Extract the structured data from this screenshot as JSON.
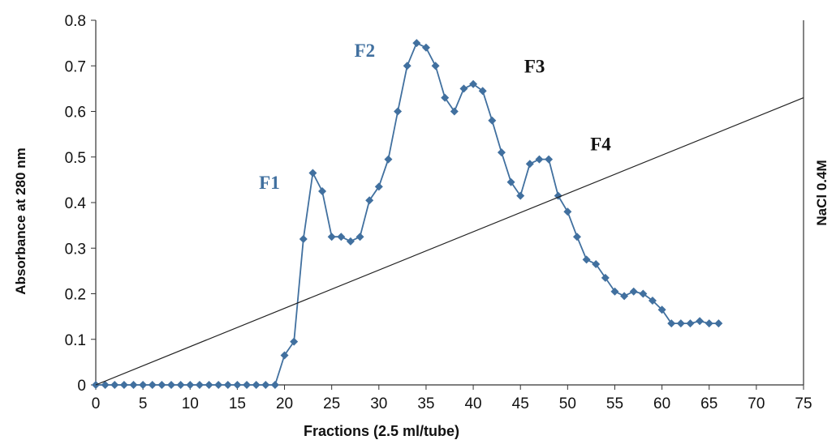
{
  "chart_data": {
    "type": "line",
    "xlabel": "Fractions (2.5 ml/tube)",
    "ylabel": "Absorbance at 280 nm",
    "y2label": "NaCl 0.4M",
    "xlim": [
      0,
      75
    ],
    "ylim": [
      0,
      0.8
    ],
    "xticks": [
      0,
      5,
      10,
      15,
      20,
      25,
      30,
      35,
      40,
      45,
      50,
      55,
      60,
      65,
      70,
      75
    ],
    "yticks": [
      "0",
      "0.1",
      "0.2",
      "0.3",
      "0.4",
      "0.5",
      "0.6",
      "0.7",
      "0.8"
    ],
    "grid": false,
    "series": [
      {
        "marker": "diamond",
        "color": "#41709f",
        "x": [
          0,
          1,
          2,
          3,
          4,
          5,
          6,
          7,
          8,
          9,
          10,
          11,
          12,
          13,
          14,
          15,
          16,
          17,
          18,
          19,
          20,
          21,
          22,
          23,
          24,
          25,
          26,
          27,
          28,
          29,
          30,
          31,
          32,
          33,
          34,
          35,
          36,
          37,
          38,
          39,
          40,
          41,
          42,
          43,
          44,
          45,
          46,
          47,
          48,
          49,
          50,
          51,
          52,
          53,
          54,
          55,
          56,
          57,
          58,
          59,
          60,
          61,
          62,
          63,
          64,
          65,
          66
        ],
        "y": [
          0,
          0,
          0,
          0,
          0,
          0,
          0,
          0,
          0,
          0,
          0,
          0,
          0,
          0,
          0,
          0,
          0,
          0,
          0,
          0,
          0.065,
          0.095,
          0.32,
          0.465,
          0.425,
          0.325,
          0.325,
          0.315,
          0.325,
          0.405,
          0.435,
          0.495,
          0.6,
          0.7,
          0.75,
          0.74,
          0.7,
          0.63,
          0.6,
          0.65,
          0.66,
          0.645,
          0.58,
          0.51,
          0.445,
          0.415,
          0.485,
          0.495,
          0.495,
          0.415,
          0.38,
          0.325,
          0.275,
          0.265,
          0.235,
          0.205,
          0.195,
          0.205,
          0.2,
          0.185,
          0.165,
          0.135,
          0.135,
          0.135,
          0.14,
          0.135,
          0.135
        ]
      },
      {
        "color": "#222222",
        "x": [
          0,
          75
        ],
        "y": [
          0,
          0.63
        ]
      }
    ],
    "annotations": [
      {
        "text": "F1",
        "x": 18.4,
        "y": 0.43,
        "color": "#41709f"
      },
      {
        "text": "F2",
        "x": 28.5,
        "y": 0.72,
        "color": "#41709f"
      },
      {
        "text": "F3",
        "x": 46.5,
        "y": 0.685,
        "color": "#111111"
      },
      {
        "text": "F4",
        "x": 53.5,
        "y": 0.515,
        "color": "#111111"
      }
    ]
  }
}
